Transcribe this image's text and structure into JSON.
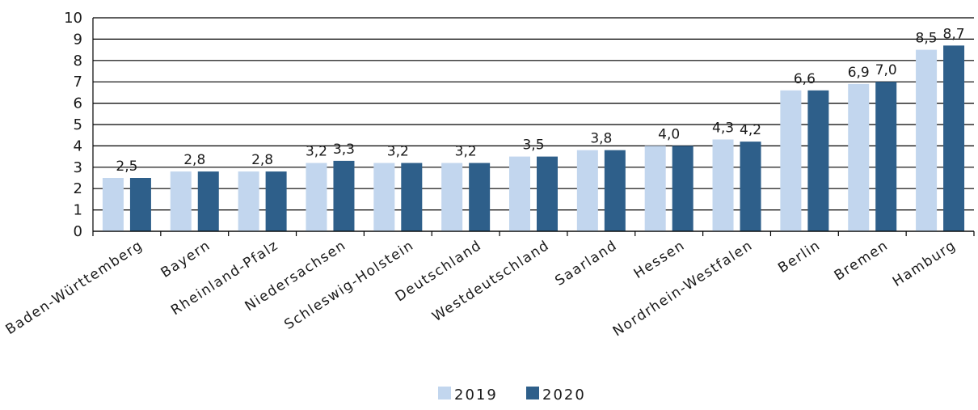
{
  "chart_data": {
    "type": "bar",
    "categories": [
      "Baden-Württemberg",
      "Bayern",
      "Rheinland-Pfalz",
      "Niedersachsen",
      "Schleswig-Holstein",
      "Deutschland",
      "Westdeutschland",
      "Saarland",
      "Hessen",
      "Nordrhein-Westfalen",
      "Berlin",
      "Bremen",
      "Hamburg"
    ],
    "series": [
      {
        "name": "2019",
        "values": [
          2.5,
          2.8,
          2.8,
          3.2,
          3.2,
          3.2,
          3.5,
          3.8,
          4.0,
          4.3,
          6.6,
          6.9,
          8.5
        ],
        "color": "#c2d6ee"
      },
      {
        "name": "2020",
        "values": [
          2.5,
          2.8,
          2.8,
          3.3,
          3.2,
          3.2,
          3.5,
          3.8,
          4.0,
          4.2,
          6.6,
          7.0,
          8.7
        ],
        "color": "#2e5f8a"
      }
    ],
    "data_labels": [
      {
        "category_index": 0,
        "texts": [
          "2,5"
        ]
      },
      {
        "category_index": 1,
        "texts": [
          "2,8"
        ]
      },
      {
        "category_index": 2,
        "texts": [
          "2,8"
        ]
      },
      {
        "category_index": 3,
        "texts": [
          "3,2",
          "3,3"
        ]
      },
      {
        "category_index": 4,
        "texts": [
          "3,2"
        ]
      },
      {
        "category_index": 5,
        "texts": [
          "3,2"
        ]
      },
      {
        "category_index": 6,
        "texts": [
          "3,5"
        ]
      },
      {
        "category_index": 7,
        "texts": [
          "3,8"
        ]
      },
      {
        "category_index": 8,
        "texts": [
          "4,0"
        ]
      },
      {
        "category_index": 9,
        "texts": [
          "4,3",
          "4,2"
        ]
      },
      {
        "category_index": 10,
        "texts": [
          "6,6"
        ]
      },
      {
        "category_index": 11,
        "texts": [
          "6,9",
          "7,0"
        ]
      },
      {
        "category_index": 12,
        "texts": [
          "8,5",
          "8,7"
        ]
      }
    ],
    "y_ticks": [
      0,
      1,
      2,
      3,
      4,
      5,
      6,
      7,
      8,
      9,
      10
    ],
    "ylim": [
      0,
      10
    ],
    "grid": true,
    "legend_position": "bottom",
    "title": "",
    "xlabel": "",
    "ylabel": ""
  }
}
